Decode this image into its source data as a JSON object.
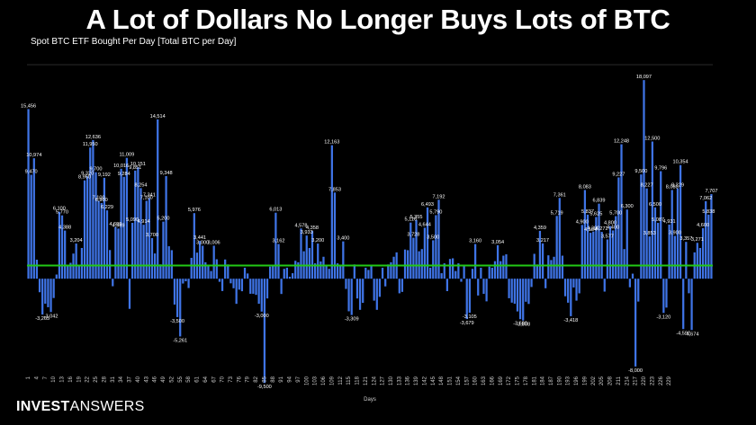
{
  "header": {
    "title": "A Lot of Dollars No Longer Buys Lots of BTC",
    "subtitle": "Spot BTC ETF Bought Per Day [Total BTC per Day]"
  },
  "brand": {
    "bold": "INVEST",
    "light": "ANSWERS"
  },
  "colors": {
    "bar": "#3f74e6",
    "average_line": "#22c916",
    "background": "#000000",
    "grid": "#2a2a2a"
  },
  "chart_data": {
    "type": "bar",
    "title": "A Lot of Dollars No Longer Buys Lots of BTC",
    "subtitle": "Spot BTC ETF Bought Per Day [Total BTC per Day]",
    "xlabel": "Days",
    "ylabel": "",
    "ylim": [
      -8500,
      19500
    ],
    "grid": true,
    "average_line": 1200,
    "x_tick_labels": [
      "1",
      "4",
      "7",
      "10",
      "13",
      "16",
      "19",
      "22",
      "25",
      "28",
      "31",
      "34",
      "37",
      "40",
      "43",
      "46",
      "49",
      "52",
      "55",
      "58",
      "61",
      "64",
      "67",
      "70",
      "73",
      "76",
      "79",
      "82",
      "85",
      "88",
      "91",
      "94",
      "97",
      "100",
      "103",
      "106",
      "109",
      "112",
      "115",
      "118",
      "121",
      "124",
      "127",
      "130",
      "133",
      "136",
      "139",
      "142",
      "145",
      "148",
      "151",
      "154",
      "157",
      "160",
      "163",
      "166",
      "169",
      "172",
      "175",
      "178",
      "181",
      "184",
      "187",
      "190",
      "193",
      "196",
      "199",
      "202",
      "205",
      "208",
      "211",
      "214",
      "217",
      "220",
      "223",
      "226",
      "229"
    ],
    "values": [
      15456,
      9470,
      10974,
      1733,
      -1233,
      -3265,
      -2276,
      -2600,
      -3042,
      -1761,
      380,
      6100,
      5770,
      4388,
      1204,
      1450,
      2290,
      3204,
      1200,
      2800,
      8960,
      9320,
      11950,
      12636,
      9700,
      7100,
      6900,
      9192,
      6229,
      2613,
      -687,
      4699,
      4569,
      10016,
      9284,
      11009,
      -2747,
      5090,
      9851,
      10151,
      8254,
      4914,
      7100,
      7341,
      3700,
      2300,
      14514,
      1305,
      5200,
      9348,
      2958,
      2600,
      -2357,
      -3500,
      -5261,
      -439,
      -236,
      -850,
      1900,
      5976,
      2377,
      3441,
      3000,
      1500,
      1230,
      700,
      3006,
      1773,
      -282,
      -1125,
      1751,
      1300,
      -421,
      -870,
      -2291,
      -1000,
      -1141,
      1000,
      476,
      -1374,
      -1374,
      -1474,
      -2286,
      -3000,
      -9500,
      -1800,
      1100,
      1200,
      6013,
      3162,
      -1393,
      900,
      1000,
      179,
      500,
      1633,
      1500,
      4578,
      2500,
      3933,
      2800,
      4358,
      1400,
      3200,
      1573,
      2000,
      1200,
      900,
      12163,
      7853,
      1400,
      1200,
      3400,
      -932,
      -2969,
      -3309,
      1300,
      -1800,
      -2836,
      -2200,
      1000,
      800,
      1200,
      -2000,
      -2836,
      -1653,
      1000,
      -700,
      1300,
      1500,
      2001,
      2400,
      -1330,
      -1200,
      2657,
      2600,
      5116,
      3728,
      5355,
      2500,
      2700,
      4644,
      6493,
      1000,
      3500,
      5790,
      7192,
      500,
      1400,
      -1133,
      1800,
      1859,
      700,
      1400,
      -277,
      1200,
      -3679,
      -3105,
      900,
      3160,
      -1531,
      1000,
      -1383,
      -2063,
      1100,
      1000,
      1600,
      3054,
      1600,
      2100,
      2222,
      -1780,
      -2180,
      -2282,
      -2982,
      -3690,
      -3808,
      -2100,
      -2300,
      -756,
      2267,
      1300,
      4359,
      3217,
      -870,
      2130,
      1700,
      1998,
      5719,
      7361,
      2100,
      -1600,
      -2188,
      -3418,
      -800,
      -2000,
      -1333,
      4900,
      8083,
      5837,
      4184,
      4300,
      5625,
      6839,
      4272,
      -1175,
      3577,
      4800,
      4400,
      5700,
      9227,
      12248,
      2700,
      6300,
      -780,
      460,
      -8000,
      -2083,
      9500,
      18097,
      8227,
      3853,
      12500,
      6500,
      5087,
      9796,
      -3120,
      -2633,
      4931,
      8083,
      3900,
      8229,
      10354,
      -4592,
      3357,
      -1326,
      -4674,
      2400,
      3271,
      2800,
      4600,
      7062,
      5838,
      7707
    ]
  }
}
